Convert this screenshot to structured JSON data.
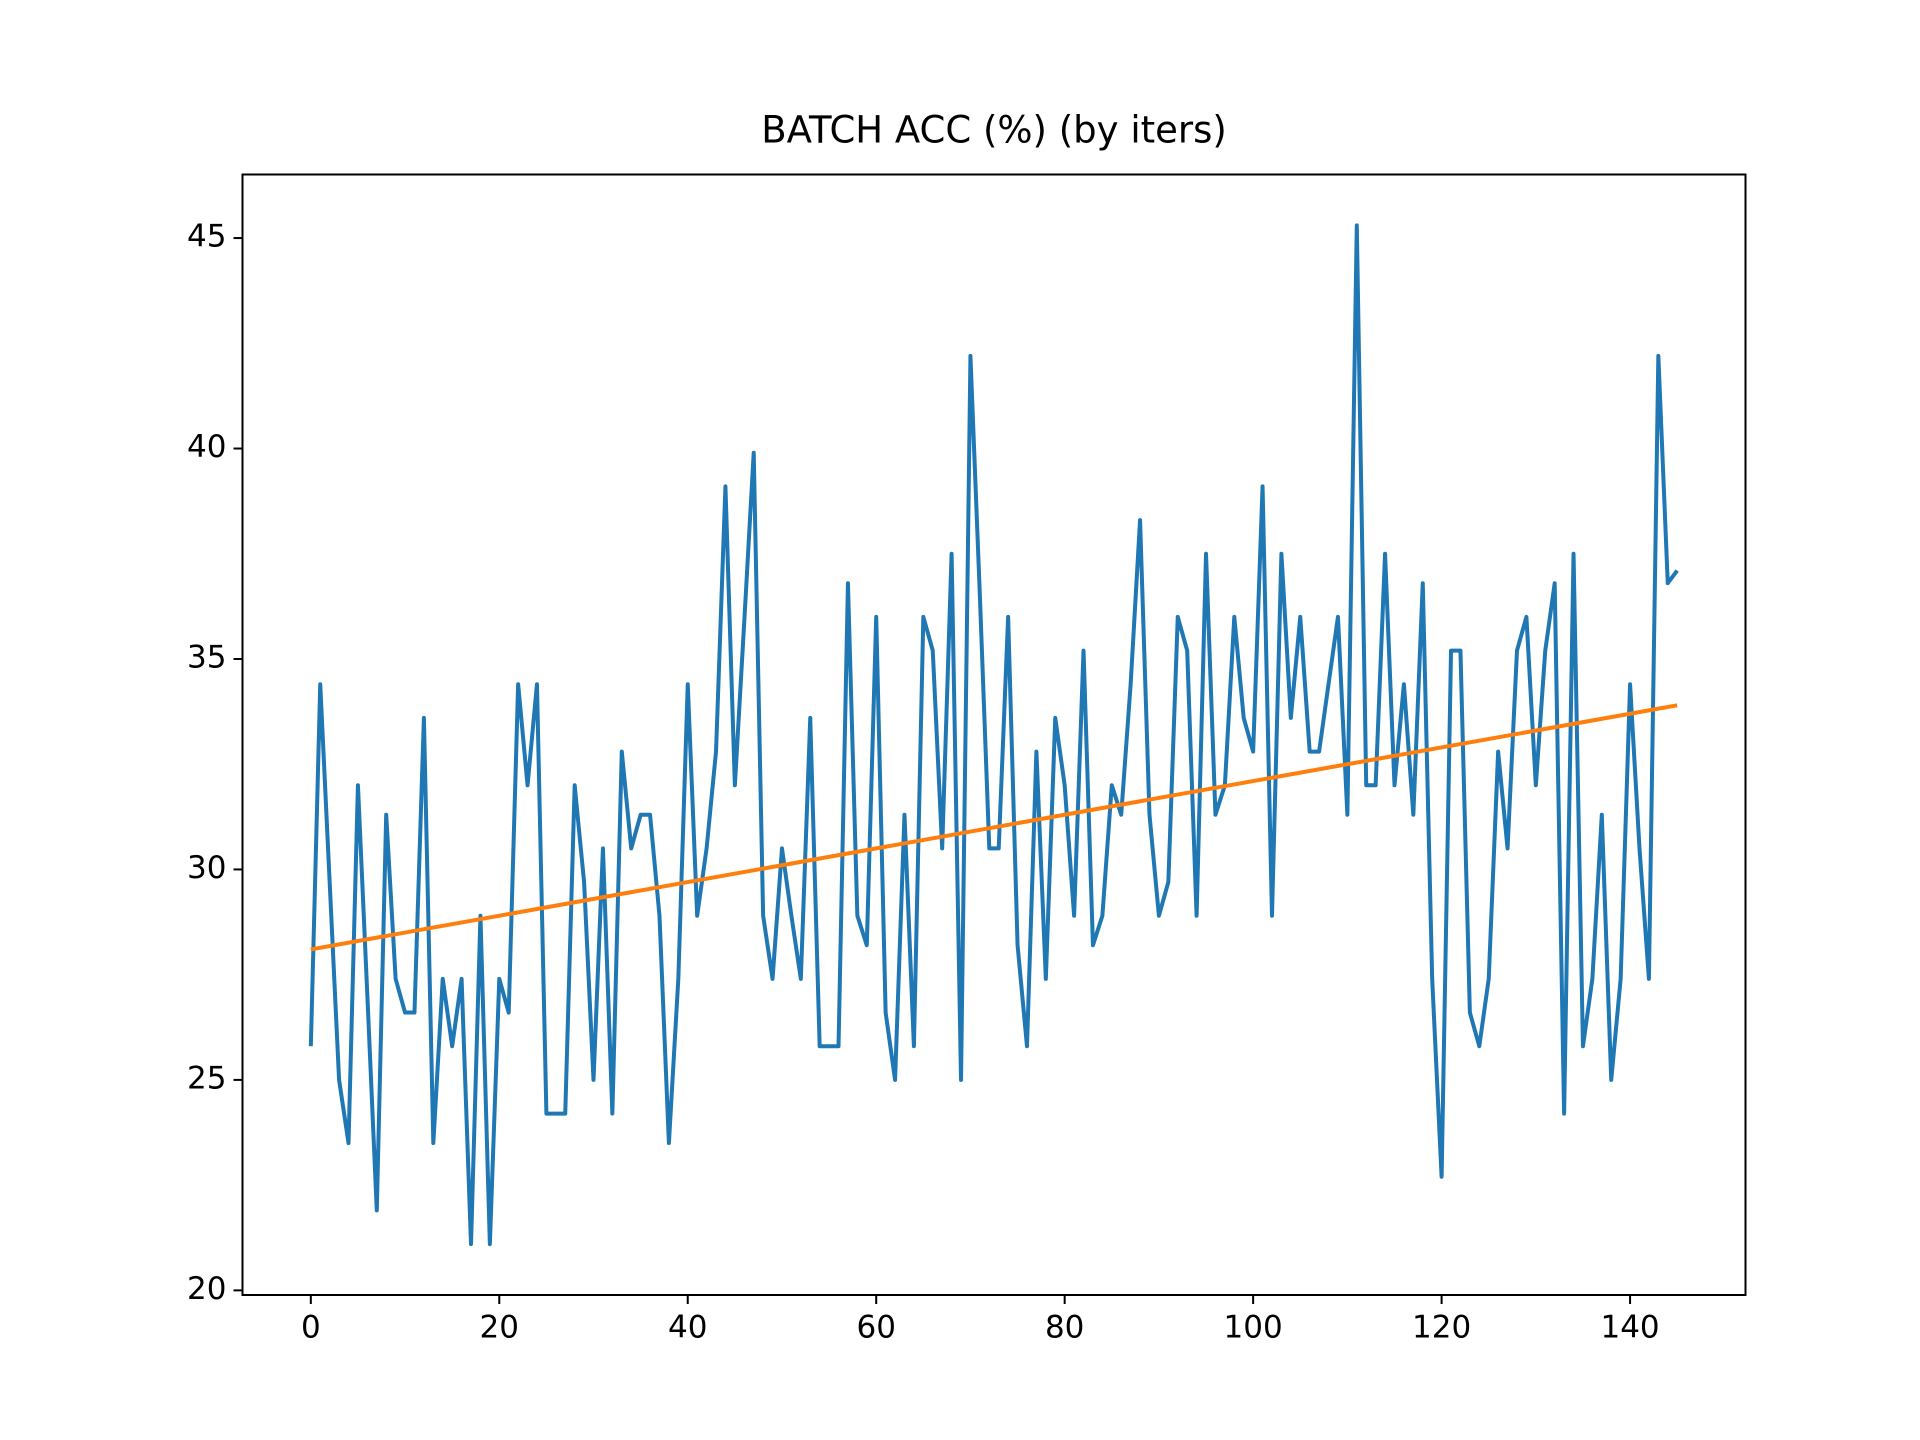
{
  "chart_data": {
    "type": "line",
    "title": "BATCH ACC (%) (by iters)",
    "series": [
      {
        "color": "#1f77b4",
        "x": [
          0,
          1,
          2,
          3,
          4,
          5,
          6,
          7,
          8,
          9,
          10,
          11,
          12,
          13,
          14,
          15,
          16,
          17,
          18,
          19,
          20,
          21,
          22,
          23,
          24,
          25,
          26,
          27,
          28,
          29,
          30,
          31,
          32,
          33,
          34,
          35,
          36,
          37,
          38,
          39,
          40,
          41,
          42,
          43,
          44,
          45,
          46,
          47,
          48,
          49,
          50,
          51,
          52,
          53,
          54,
          55,
          56,
          57,
          58,
          59,
          60,
          61,
          62,
          63,
          64,
          65,
          66,
          67,
          68,
          69,
          70,
          71,
          72,
          73,
          74,
          75,
          76,
          77,
          78,
          79,
          80,
          81,
          82,
          83,
          84,
          85,
          86,
          87,
          88,
          89,
          90,
          91,
          92,
          93,
          94,
          95,
          96,
          97,
          98,
          99,
          100,
          101,
          102,
          103,
          104,
          105,
          106,
          107,
          108,
          109,
          110,
          111,
          112,
          113,
          114,
          115,
          116,
          117,
          118,
          119,
          120,
          121,
          122,
          123,
          124,
          125,
          126,
          127,
          128,
          129,
          130,
          131,
          132,
          133,
          134,
          135,
          136,
          137,
          138,
          139,
          140,
          141,
          142,
          143,
          144,
          145
        ],
        "values": [
          25.8,
          34.4,
          29.7,
          25.0,
          23.5,
          32.0,
          27.0,
          21.9,
          31.3,
          27.4,
          26.6,
          26.6,
          33.6,
          23.5,
          27.4,
          25.8,
          27.4,
          21.1,
          28.9,
          21.1,
          27.4,
          26.6,
          34.4,
          32.0,
          34.4,
          24.2,
          24.2,
          24.2,
          32.0,
          29.7,
          25.0,
          30.5,
          24.2,
          32.8,
          30.5,
          31.3,
          31.3,
          28.9,
          23.5,
          27.4,
          34.4,
          28.9,
          30.5,
          32.8,
          39.1,
          32.0,
          35.9,
          39.9,
          28.9,
          27.4,
          30.5,
          28.9,
          27.4,
          33.6,
          25.8,
          25.8,
          25.8,
          36.8,
          28.9,
          28.2,
          36.0,
          26.6,
          25.0,
          31.3,
          25.8,
          36.0,
          35.2,
          30.5,
          37.5,
          25.0,
          42.2,
          36.5,
          30.5,
          30.5,
          36.0,
          28.2,
          25.8,
          32.8,
          27.4,
          33.6,
          32.0,
          28.9,
          35.2,
          28.2,
          28.9,
          32.0,
          31.3,
          34.4,
          38.3,
          31.3,
          28.9,
          29.7,
          36.0,
          35.2,
          28.9,
          37.5,
          31.3,
          32.0,
          36.0,
          33.6,
          32.8,
          39.1,
          28.9,
          37.5,
          33.6,
          36.0,
          32.8,
          32.8,
          34.4,
          36.0,
          31.3,
          45.3,
          32.0,
          32.0,
          37.5,
          32.0,
          34.4,
          31.3,
          36.8,
          27.4,
          22.7,
          35.2,
          35.2,
          26.6,
          25.8,
          27.4,
          32.8,
          30.5,
          35.2,
          36.0,
          32.0,
          35.2,
          36.8,
          24.2,
          37.5,
          25.8,
          27.4,
          31.3,
          25.0,
          27.4,
          34.4,
          30.5,
          27.4,
          42.2,
          36.8,
          37.1
        ]
      },
      {
        "color": "#ff7f0e",
        "x": [
          0,
          145
        ],
        "values": [
          28.1,
          33.9
        ]
      }
    ],
    "xlim": [
      -7.25,
      152.25
    ],
    "xticks": [
      0,
      20,
      40,
      60,
      80,
      100,
      120,
      140
    ],
    "ylim": [
      19.89,
      46.51
    ],
    "yticks": [
      20,
      25,
      30,
      35,
      40,
      45
    ],
    "grid": false
  }
}
